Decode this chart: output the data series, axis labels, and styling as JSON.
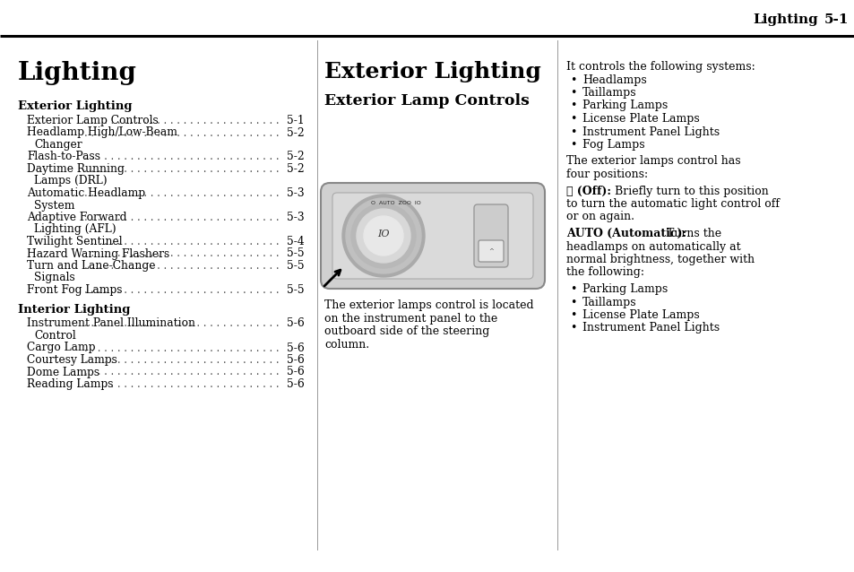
{
  "bg_color": "#ffffff",
  "header_text_left": "Lighting",
  "header_text_right": "5-1",
  "col1_title": "Lighting",
  "col1_section1_title": "Exterior Lighting",
  "col1_section1_items": [
    [
      "Exterior Lamp Controls",
      "5-1"
    ],
    [
      "Headlamp High/Low-Beam\nChanger",
      "5-2"
    ],
    [
      "Flash-to-Pass",
      "5-2"
    ],
    [
      "Daytime Running\nLamps (DRL)",
      "5-2"
    ],
    [
      "Automatic Headlamp\nSystem",
      "5-3"
    ],
    [
      "Adaptive Forward\nLighting (AFL)",
      "5-3"
    ],
    [
      "Twilight Sentinel",
      "5-4"
    ],
    [
      "Hazard Warning Flashers",
      "5-5"
    ],
    [
      "Turn and Lane-Change\nSignals",
      "5-5"
    ],
    [
      "Front Fog Lamps",
      "5-5"
    ]
  ],
  "col1_section2_title": "Interior Lighting",
  "col1_section2_items": [
    [
      "Instrument Panel Illumination\nControl",
      "5-6"
    ],
    [
      "Cargo Lamp",
      "5-6"
    ],
    [
      "Courtesy Lamps",
      "5-6"
    ],
    [
      "Dome Lamps",
      "5-6"
    ],
    [
      "Reading Lamps",
      "5-6"
    ]
  ],
  "col2_title": "Exterior Lighting",
  "col2_subtitle": "Exterior Lamp Controls",
  "col2_body_lines": [
    "The exterior lamps control is located",
    "on the instrument panel to the",
    "outboard side of the steering",
    "column."
  ],
  "col3_intro": "It controls the following systems:",
  "col3_bullets1": [
    "Headlamps",
    "Taillamps",
    "Parking Lamps",
    "License Plate Lamps",
    "Instrument Panel Lights",
    "Fog Lamps"
  ],
  "col3_para1_lines": [
    "The exterior lamps control has",
    "four positions:"
  ],
  "col3_off_bold": "␀ (Off):",
  "col3_off_text_lines": [
    "  Briefly turn to this position",
    "to turn the automatic light control off",
    "or on again."
  ],
  "col3_auto_bold": "AUTO (Automatic):",
  "col3_auto_text_lines": [
    "  Turns the",
    "headlamps on automatically at",
    "normal brightness, together with",
    "the following:"
  ],
  "col3_bullets2": [
    "Parking Lamps",
    "Taillamps",
    "License Plate Lamps",
    "Instrument Panel Lights"
  ]
}
